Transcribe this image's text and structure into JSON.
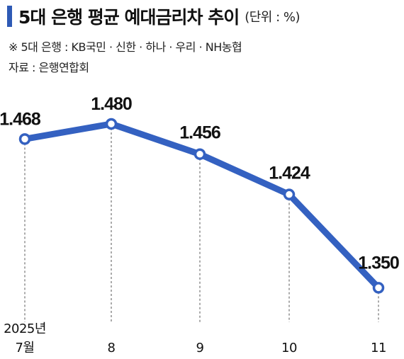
{
  "header": {
    "title": "5대 은행 평균 예대금리차 추이",
    "unit": "(단위 : %)",
    "note": "※ 5대 은행 : KB국민 · 신한 · 하나 · 우리 · NH농협",
    "source": "자료 : 은행연합회"
  },
  "colors": {
    "line": "#3461c1",
    "accent": "#2e5ab5"
  },
  "chart_data": {
    "type": "line",
    "title": "5대 은행 평균 예대금리차 추이",
    "unit": "%",
    "categories": [
      "7월",
      "8",
      "9",
      "10",
      "11"
    ],
    "first_category_prefix": "2025년",
    "values": [
      1.468,
      1.48,
      1.456,
      1.424,
      1.35
    ],
    "data_labels": [
      "1.468",
      "1.480",
      "1.456",
      "1.424",
      "1.350"
    ],
    "grid": false,
    "legend": "none"
  }
}
